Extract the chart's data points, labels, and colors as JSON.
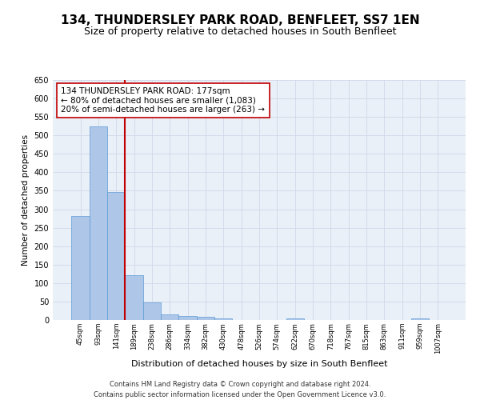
{
  "title1": "134, THUNDERSLEY PARK ROAD, BENFLEET, SS7 1EN",
  "title2": "Size of property relative to detached houses in South Benfleet",
  "xlabel": "Distribution of detached houses by size in South Benfleet",
  "ylabel": "Number of detached properties",
  "footer": "Contains HM Land Registry data © Crown copyright and database right 2024.\nContains public sector information licensed under the Open Government Licence v3.0.",
  "categories": [
    "45sqm",
    "93sqm",
    "141sqm",
    "189sqm",
    "238sqm",
    "286sqm",
    "334sqm",
    "382sqm",
    "430sqm",
    "478sqm",
    "526sqm",
    "574sqm",
    "622sqm",
    "670sqm",
    "718sqm",
    "767sqm",
    "815sqm",
    "863sqm",
    "911sqm",
    "959sqm",
    "1007sqm"
  ],
  "values": [
    281,
    524,
    347,
    121,
    48,
    15,
    10,
    8,
    5,
    0,
    0,
    0,
    5,
    0,
    0,
    0,
    0,
    0,
    0,
    5,
    0
  ],
  "bar_color": "#aec6e8",
  "bar_edge_color": "#5b9bd5",
  "vline_x": 2.5,
  "vline_color": "#c00000",
  "annotation_text": "134 THUNDERSLEY PARK ROAD: 177sqm\n← 80% of detached houses are smaller (1,083)\n20% of semi-detached houses are larger (263) →",
  "annotation_box_color": "white",
  "annotation_box_edge": "#c00000",
  "ylim": [
    0,
    650
  ],
  "yticks": [
    0,
    50,
    100,
    150,
    200,
    250,
    300,
    350,
    400,
    450,
    500,
    550,
    600,
    650
  ],
  "grid_color": "#d0d8e8",
  "bg_color": "#eaf0f8",
  "title1_fontsize": 11,
  "title2_fontsize": 9,
  "xlabel_fontsize": 8,
  "ylabel_fontsize": 7.5,
  "xtick_fontsize": 6,
  "ytick_fontsize": 7,
  "footer_fontsize": 6,
  "annot_fontsize": 7.5
}
